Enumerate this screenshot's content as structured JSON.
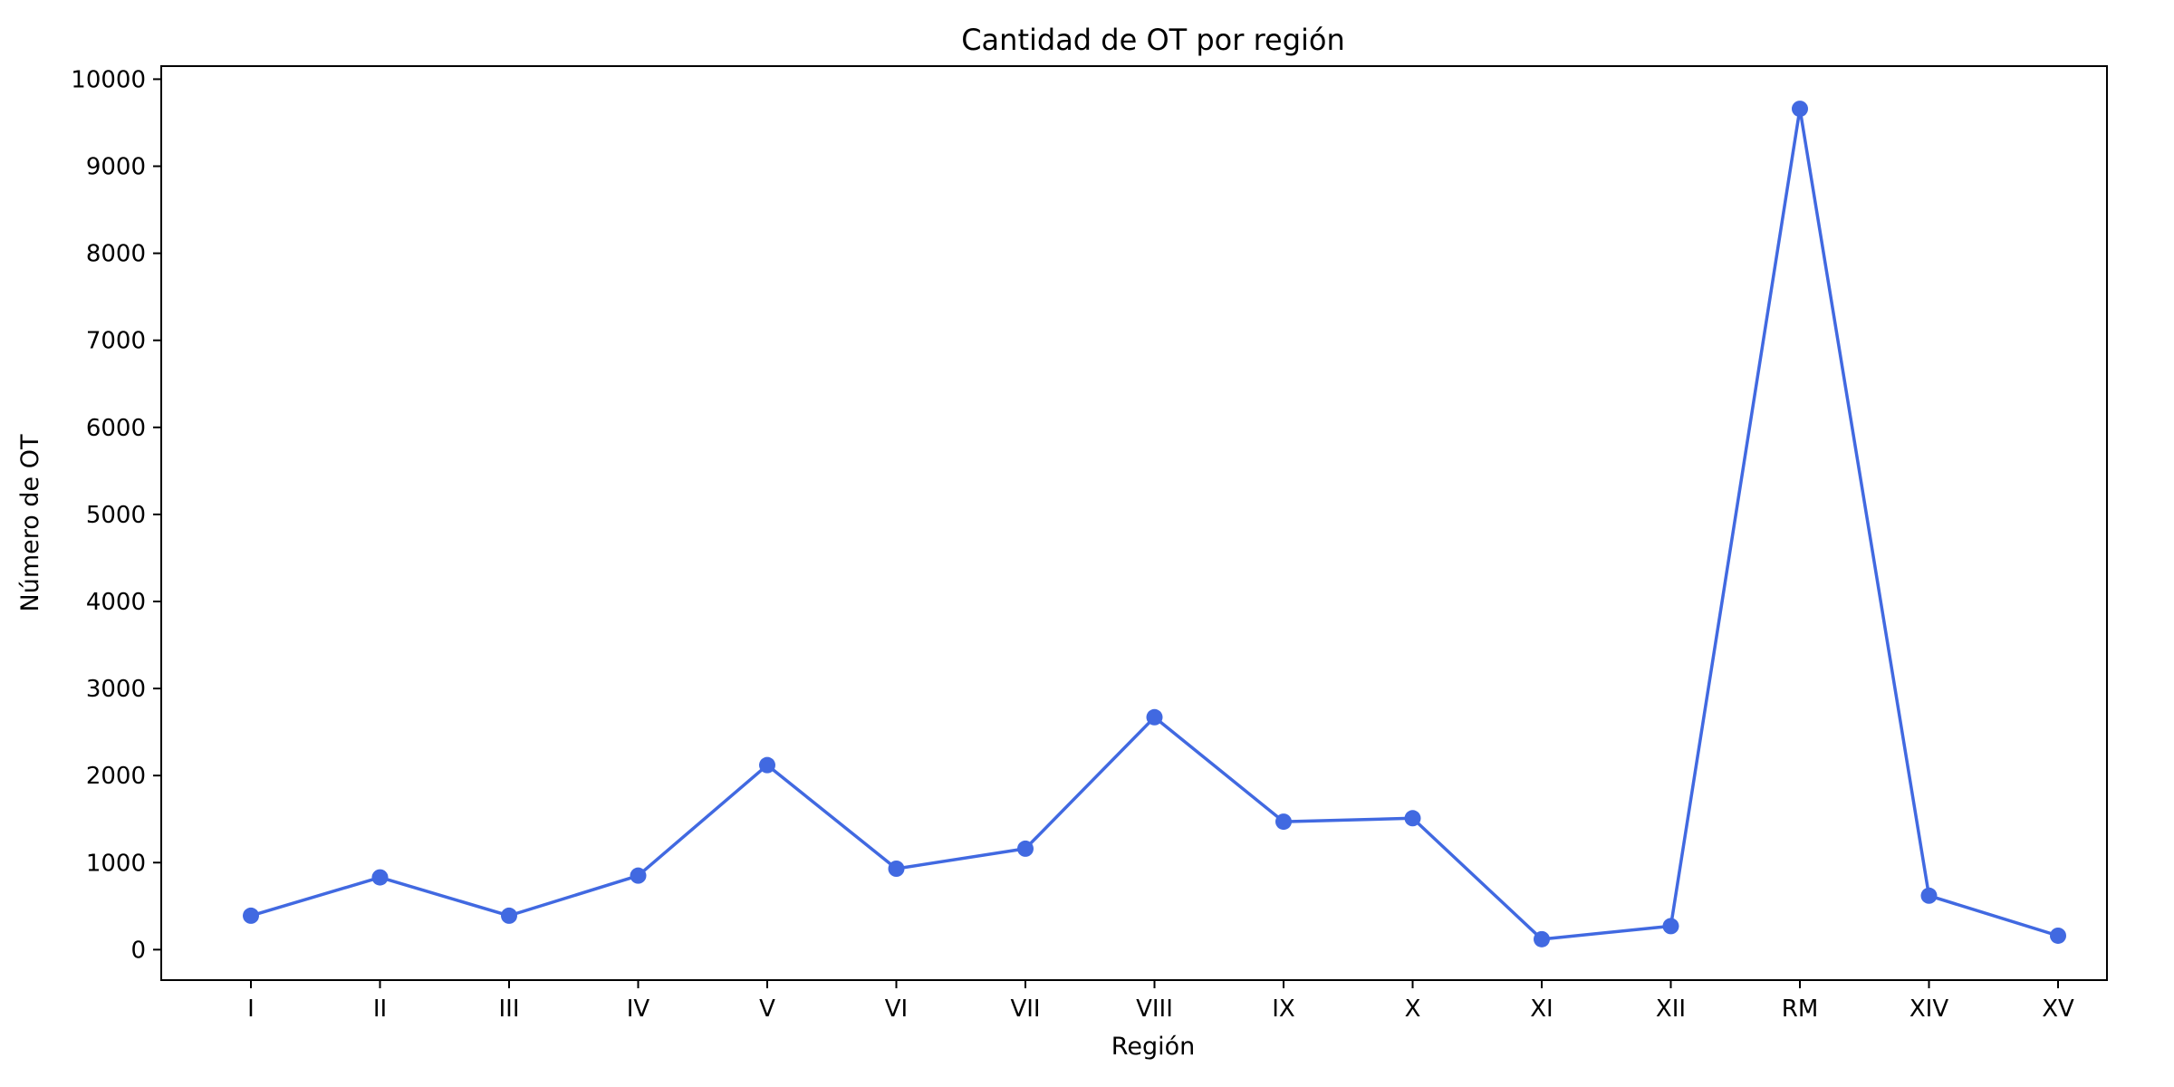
{
  "chart_data": {
    "type": "line",
    "title": "Cantidad de OT por región",
    "xlabel": "Región",
    "ylabel": "Número de OT",
    "categories": [
      "I",
      "II",
      "III",
      "IV",
      "V",
      "VI",
      "VII",
      "VIII",
      "IX",
      "X",
      "XI",
      "XII",
      "RM",
      "XIV",
      "XV"
    ],
    "series": [
      {
        "values": [
          390,
          830,
          390,
          850,
          2120,
          930,
          1160,
          2670,
          1470,
          1510,
          120,
          270,
          9660,
          620,
          160
        ]
      }
    ],
    "ylim": [
      -350,
      10150
    ],
    "yticks": [
      0,
      1000,
      2000,
      3000,
      4000,
      5000,
      6000,
      7000,
      8000,
      9000,
      10000
    ],
    "grid": false,
    "legend": "none",
    "markers": true,
    "line_color": "#4169e1"
  }
}
